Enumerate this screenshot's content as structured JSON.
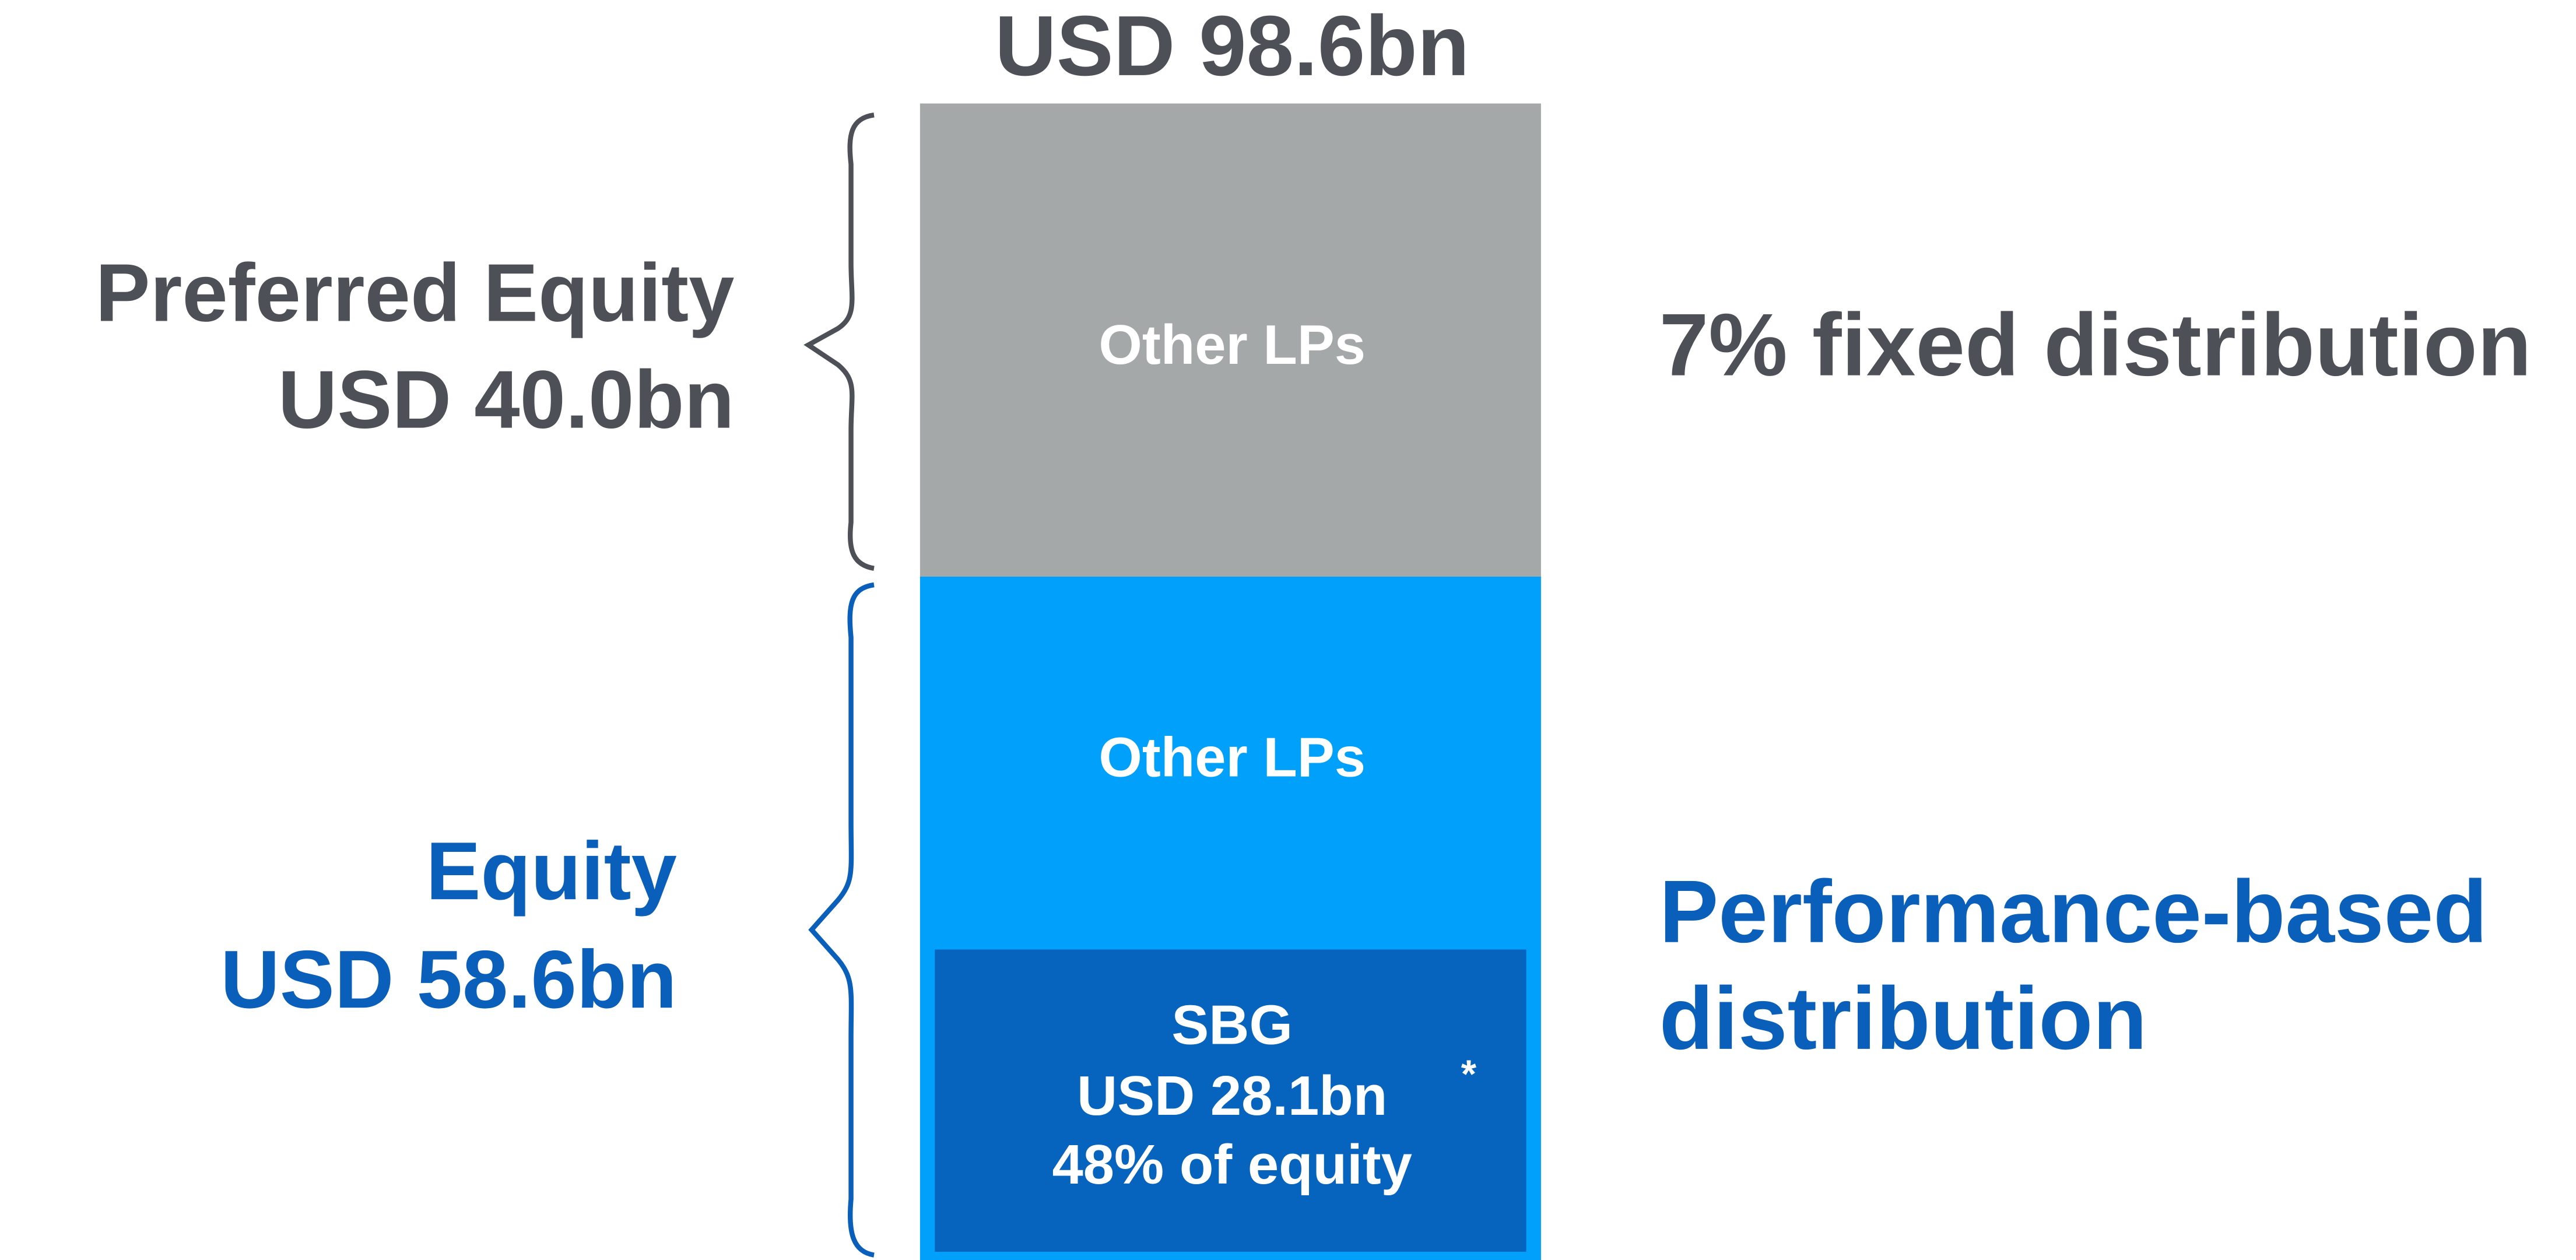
{
  "total": "USD 98.6bn",
  "preferred": {
    "label": "Preferred Equity",
    "amount": "USD 40.0bn",
    "segment": "Other LPs",
    "distribution": "7% fixed distribution"
  },
  "equity": {
    "label": "Equity",
    "amount": "USD 58.6bn",
    "segment": "Other LPs",
    "sbg": {
      "name": "SBG",
      "amount": "USD 28.1bn",
      "note_mark": "*",
      "share": "48% of equity"
    },
    "distribution": [
      "Performance-based",
      "distribution"
    ]
  }
}
